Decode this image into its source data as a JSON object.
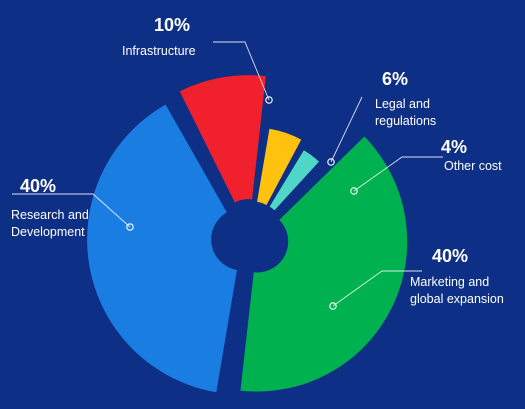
{
  "chart_data": {
    "type": "pie",
    "title": "",
    "slices": [
      {
        "label": [
          "Infrastructure"
        ],
        "value": 10,
        "value_label": "10%",
        "color": "#f0202c"
      },
      {
        "label": [
          "Legal and",
          "regulations"
        ],
        "value": 6,
        "value_label": "6%",
        "color": "#ffc20e"
      },
      {
        "label": [
          "Other cost"
        ],
        "value": 4,
        "value_label": "4%",
        "color": "#4fd6c6"
      },
      {
        "label": [
          "Marketing and",
          "global expansion"
        ],
        "value": 40,
        "value_label": "40%",
        "color": "#00b14f"
      },
      {
        "label": [
          "Research and",
          "Development"
        ],
        "value": 40,
        "value_label": "40%",
        "color": "#1a7de2"
      }
    ]
  }
}
